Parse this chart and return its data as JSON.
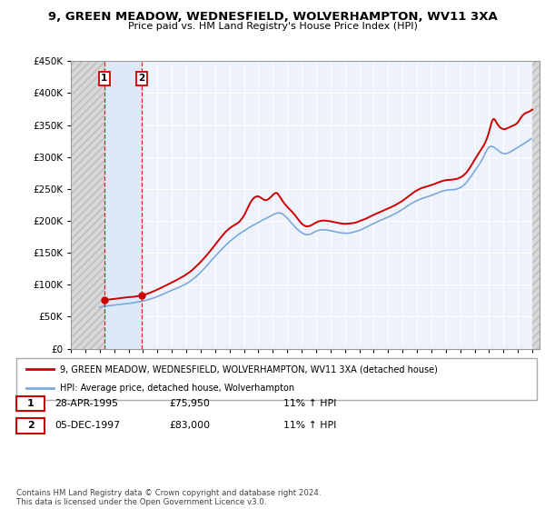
{
  "title": "9, GREEN MEADOW, WEDNESFIELD, WOLVERHAMPTON, WV11 3XA",
  "subtitle": "Price paid vs. HM Land Registry's House Price Index (HPI)",
  "ylim": [
    0,
    450000
  ],
  "yticks": [
    0,
    50000,
    100000,
    150000,
    200000,
    250000,
    300000,
    350000,
    400000,
    450000
  ],
  "xlim_start": 1993.0,
  "xlim_end": 2025.5,
  "sale_dates": [
    1995.32,
    1997.92
  ],
  "sale_prices": [
    75950,
    83000
  ],
  "sale_labels": [
    "1",
    "2"
  ],
  "legend_line1": "9, GREEN MEADOW, WEDNESFIELD, WOLVERHAMPTON, WV11 3XA (detached house)",
  "legend_line2": "HPI: Average price, detached house, Wolverhampton",
  "table_rows": [
    {
      "num": "1",
      "date": "28-APR-1995",
      "price": "£75,950",
      "hpi": "11% ↑ HPI"
    },
    {
      "num": "2",
      "date": "05-DEC-1997",
      "price": "£83,000",
      "hpi": "11% ↑ HPI"
    }
  ],
  "footnote": "Contains HM Land Registry data © Crown copyright and database right 2024.\nThis data is licensed under the Open Government Licence v3.0.",
  "hpi_color": "#7aaadd",
  "price_color": "#cc0000",
  "plot_bg_color": "#eef2fb",
  "hatch_bg_color": "#d8d8d8"
}
